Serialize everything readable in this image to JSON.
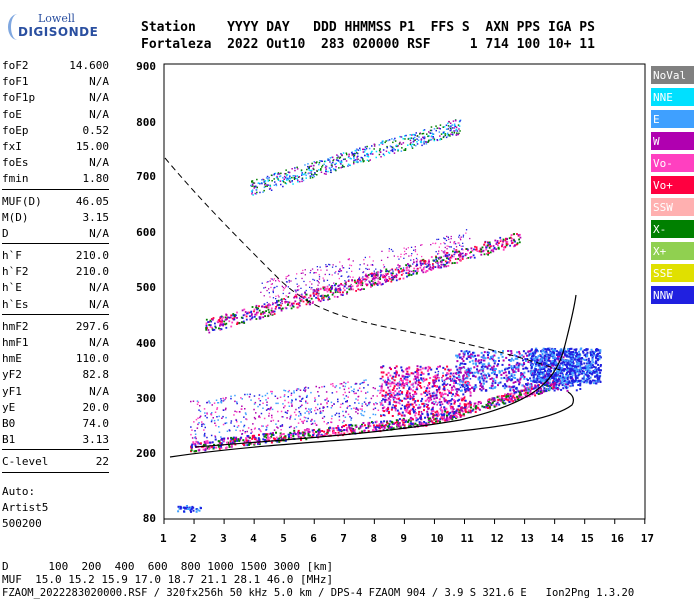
{
  "logo": {
    "brand_top": "Lowell",
    "brand_bottom": "DIGISONDE"
  },
  "header": {
    "row1": "Station    YYYY DAY   DDD HHMMSS P1  FFS S  AXN PPS IGA PS",
    "row2": "Fortaleza  2022 Out10  283 020000 RSF     1 714 100 10+ 11"
  },
  "params_group1": [
    {
      "label": "foF2",
      "value": "14.600"
    },
    {
      "label": "foF1",
      "value": "N/A"
    },
    {
      "label": "foF1p",
      "value": "N/A"
    },
    {
      "label": "foE",
      "value": "N/A"
    },
    {
      "label": "foEp",
      "value": "0.52"
    },
    {
      "label": "fxI",
      "value": "15.00"
    },
    {
      "label": "foEs",
      "value": "N/A"
    },
    {
      "label": "fmin",
      "value": "1.80"
    }
  ],
  "params_group2": [
    {
      "label": "MUF(D)",
      "value": "46.05"
    },
    {
      "label": "M(D)",
      "value": "3.15"
    },
    {
      "label": "D",
      "value": "N/A"
    }
  ],
  "params_group3": [
    {
      "label": "h`F",
      "value": "210.0"
    },
    {
      "label": "h`F2",
      "value": "210.0"
    },
    {
      "label": "h`E",
      "value": "N/A"
    },
    {
      "label": "h`Es",
      "value": "N/A"
    }
  ],
  "params_group4": [
    {
      "label": "hmF2",
      "value": "297.6"
    },
    {
      "label": "hmF1",
      "value": "N/A"
    },
    {
      "label": "hmE",
      "value": "110.0"
    },
    {
      "label": "yF2",
      "value": "82.8"
    },
    {
      "label": "yF1",
      "value": "N/A"
    },
    {
      "label": "yE",
      "value": "20.0"
    },
    {
      "label": "B0",
      "value": "74.0"
    },
    {
      "label": "B1",
      "value": "3.13"
    }
  ],
  "params_group5": [
    {
      "label": "C-level",
      "value": "22"
    }
  ],
  "auto_info": {
    "line1": "Auto:",
    "line2": "Artist5",
    "line3": "500200"
  },
  "legend": [
    {
      "label": "NoVal",
      "color": "#808080"
    },
    {
      "label": "NNE",
      "color": "#00e0ff"
    },
    {
      "label": "E",
      "color": "#3fa0ff"
    },
    {
      "label": "W",
      "color": "#b000b0"
    },
    {
      "label": "Vo-",
      "color": "#ff40c0"
    },
    {
      "label": "Vo+",
      "color": "#ff0040"
    },
    {
      "label": "SSW",
      "color": "#ffb0b0"
    },
    {
      "label": "X-",
      "color": "#008000"
    },
    {
      "label": "X+",
      "color": "#90d050"
    },
    {
      "label": "SSE",
      "color": "#e0e000"
    },
    {
      "label": "NNW",
      "color": "#2020e0"
    }
  ],
  "axes": {
    "y_ticks": [
      "900",
      "800",
      "700",
      "600",
      "500",
      "400",
      "300",
      "200",
      "80"
    ],
    "x_ticks": [
      "1",
      "2",
      "3",
      "4",
      "5",
      "6",
      "7",
      "8",
      "9",
      "10",
      "11",
      "12",
      "13",
      "14",
      "15",
      "16",
      "17"
    ]
  },
  "footer": {
    "line1": "D      100  200  400  600  800 1000 1500 3000 [km]",
    "line2": "MUF  15.0 15.2 15.9 17.0 18.7 21.1 28.1 46.0 [MHz]",
    "line3": "FZAOM_2022283020000.RSF / 320fx256h 50 kHz 5.0 km / DPS-4 FZAOM 904 / 3.9 S 321.6 E   Ion2Png 1.3.20"
  }
}
